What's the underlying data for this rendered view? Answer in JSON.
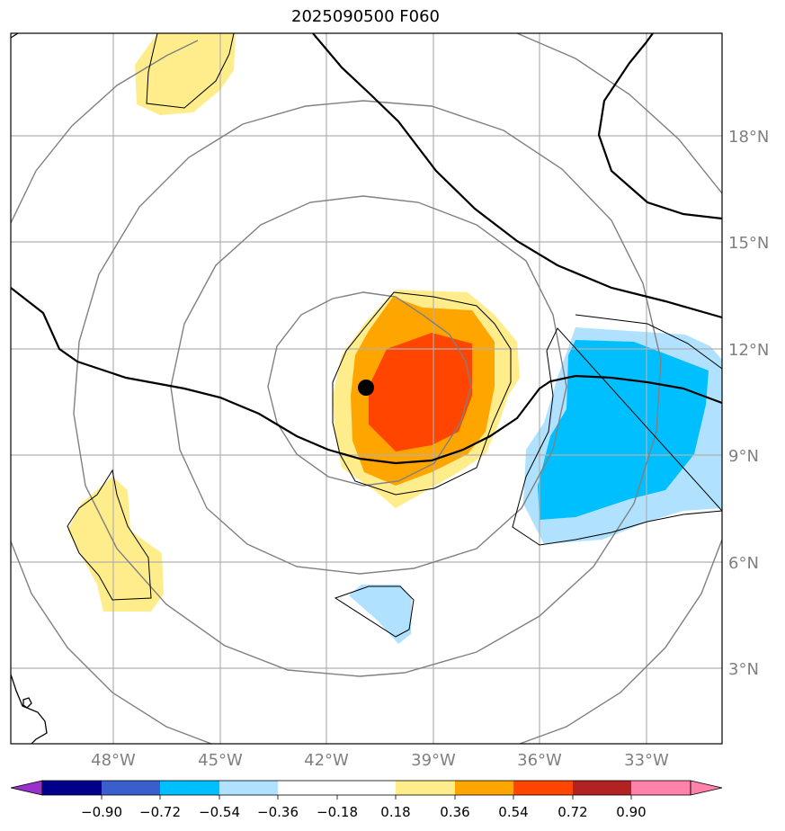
{
  "title": "2025090500 F060",
  "map": {
    "lat_labels": [
      "18°N",
      "15°N",
      "12°N",
      "9°N",
      "6°N",
      "3°N"
    ],
    "lon_labels": [
      "48°W",
      "45°W",
      "42°W",
      "39°W",
      "36°W",
      "33°W"
    ],
    "marker": {
      "lat": 10.9,
      "lon": -40.9
    }
  },
  "colorbar": {
    "colors": [
      "#9932cc",
      "#00008b",
      "#3a5fcd",
      "#00bfff",
      "#b0e2ff",
      "#ffffff",
      "#ffec8b",
      "#ffa500",
      "#ff4500",
      "#b22222",
      "#ff82ab"
    ],
    "ticks": [
      "−0.90",
      "−0.72",
      "−0.54",
      "−0.36",
      "−0.18",
      "0.18",
      "0.36",
      "0.54",
      "0.72",
      "0.90"
    ]
  }
}
